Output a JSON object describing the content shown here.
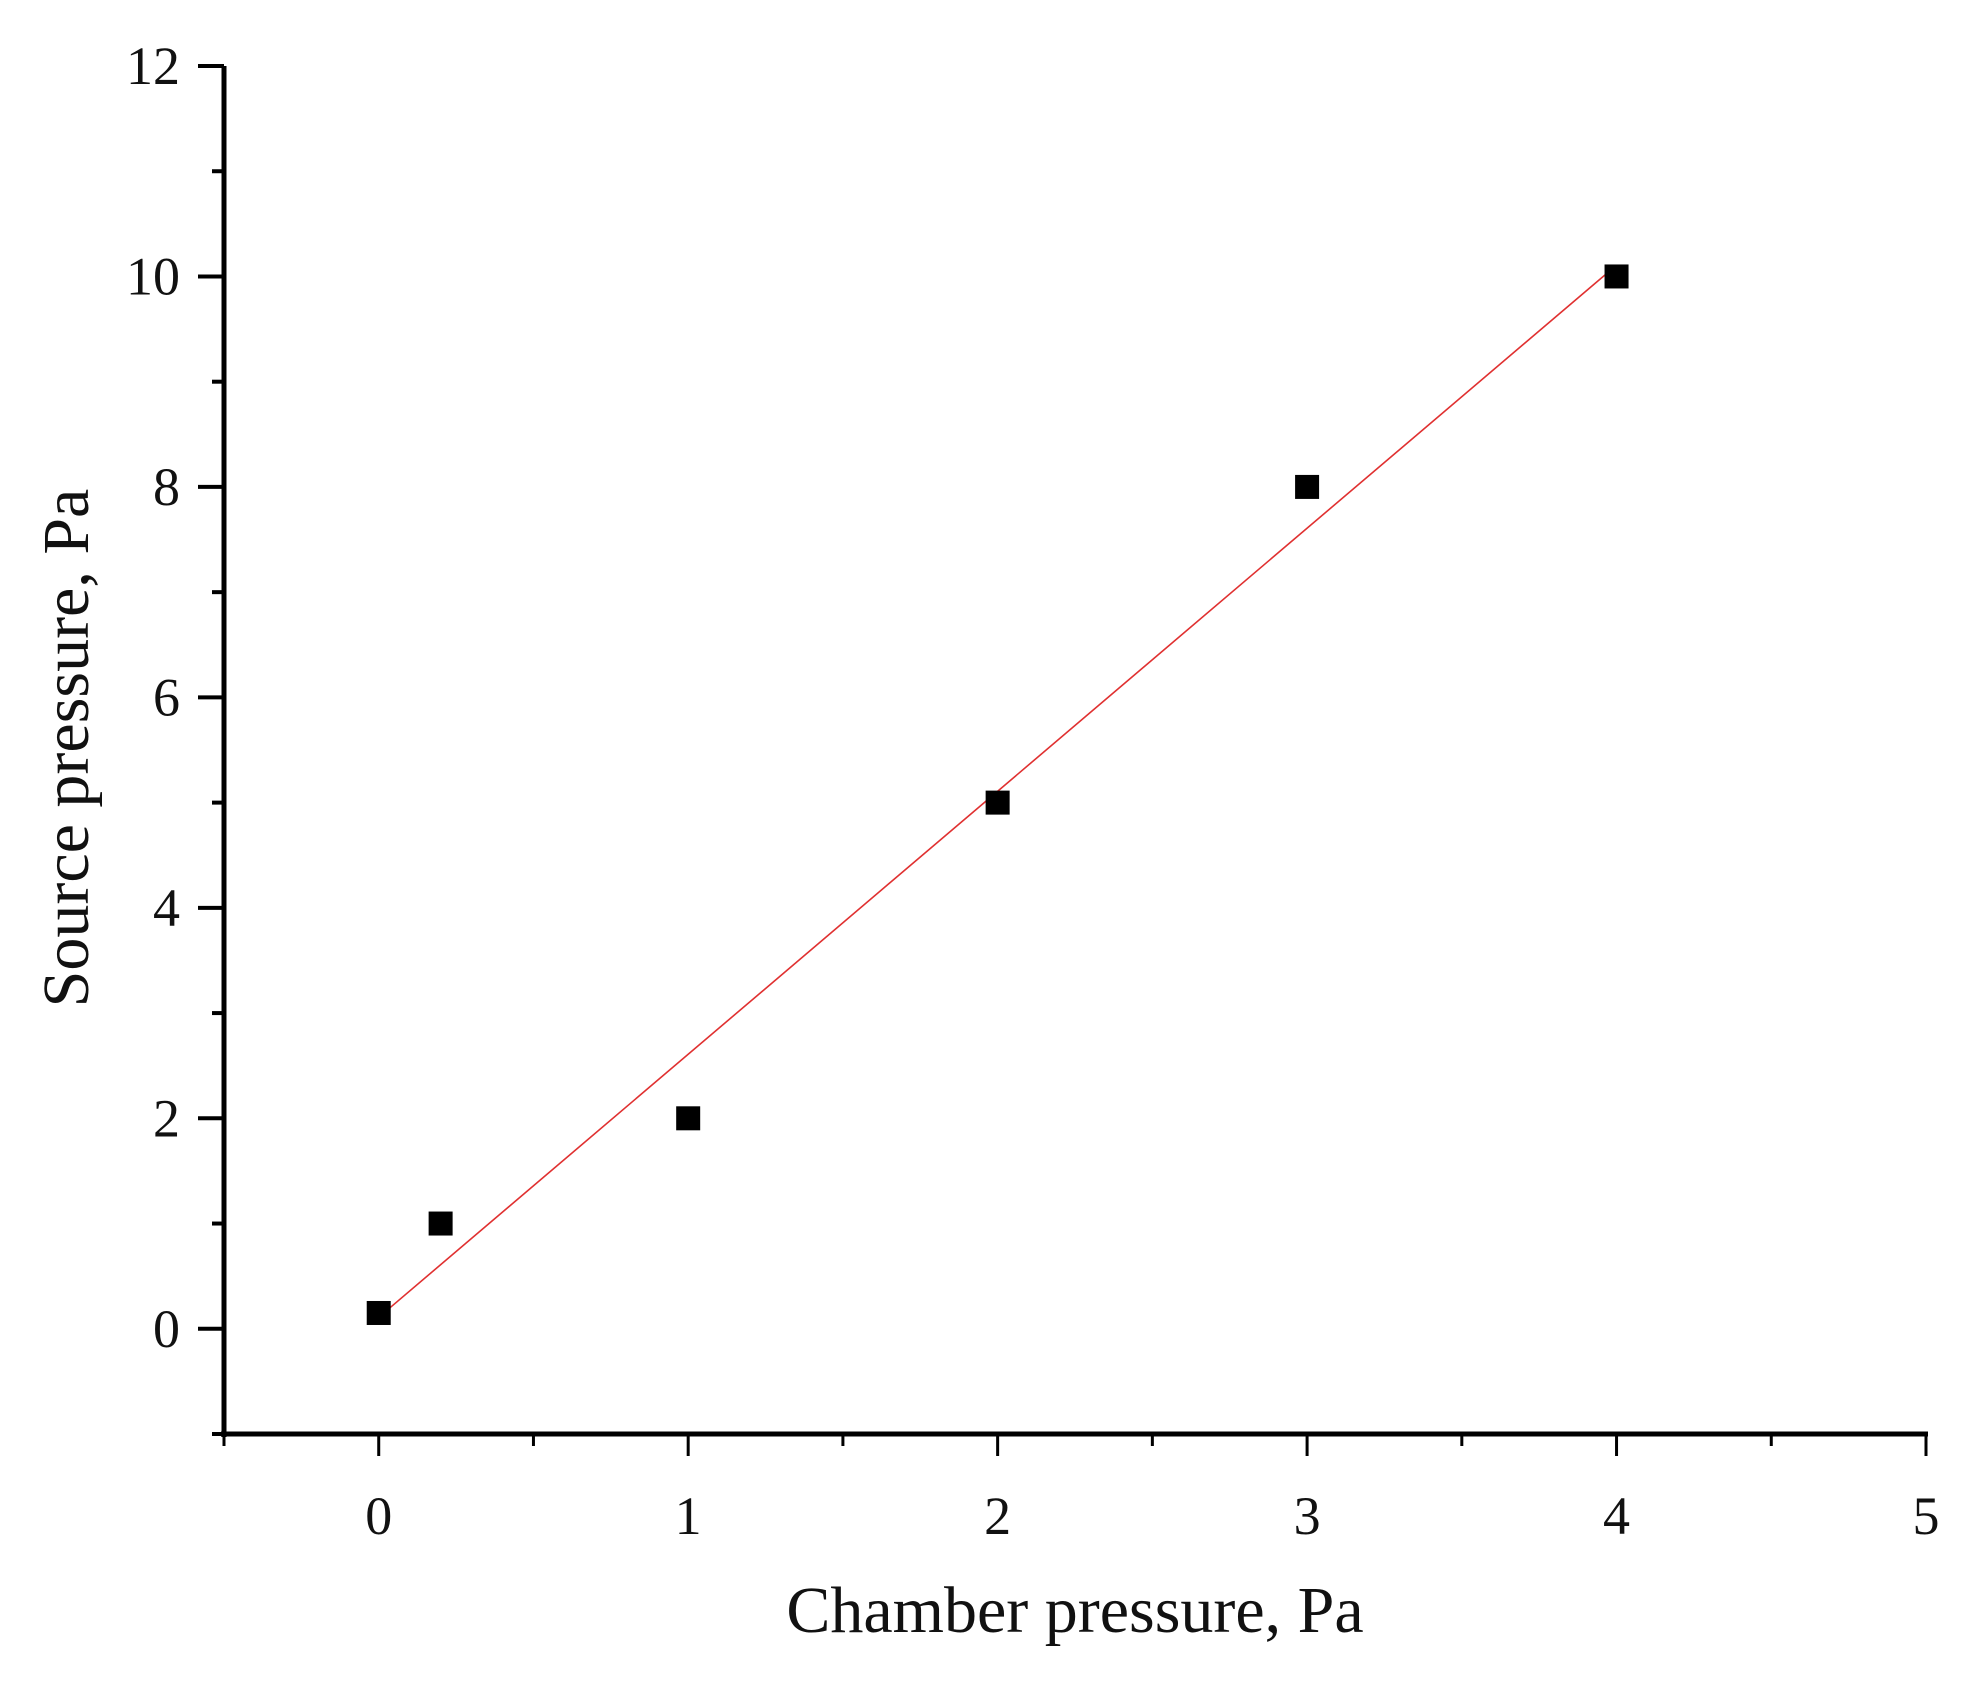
{
  "chart_data": {
    "type": "scatter",
    "title": "",
    "xlabel": "Chamber pressure, Pa",
    "ylabel": "Source pressure, Pa",
    "xlim": [
      -0.5,
      5
    ],
    "ylim": [
      -1,
      12
    ],
    "xticks": [
      0,
      1,
      2,
      3,
      4,
      5
    ],
    "yticks": [
      0,
      2,
      4,
      6,
      8,
      10,
      12
    ],
    "grid": false,
    "legend": "none",
    "series": [
      {
        "marker": "square",
        "color": "#000000",
        "x": [
          0,
          0.2,
          1,
          2,
          3,
          4
        ],
        "y": [
          0.15,
          1,
          2,
          5,
          8,
          10
        ]
      }
    ],
    "fit_line": {
      "type": "linear",
      "color": "#e03030",
      "x_range": [
        0,
        4
      ]
    }
  }
}
